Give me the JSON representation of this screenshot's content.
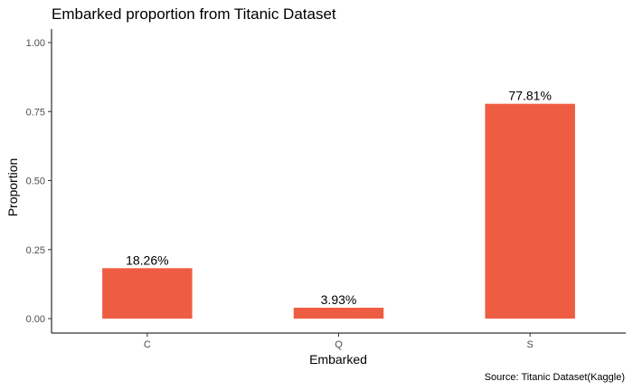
{
  "chart_data": {
    "type": "bar",
    "title": "Embarked proportion from Titanic Dataset",
    "caption": "Source: Titanic Dataset(Kaggle)",
    "xlabel": "Embarked",
    "ylabel": "Proportion",
    "categories": [
      "C",
      "Q",
      "S"
    ],
    "values": [
      0.1826,
      0.0393,
      0.7781
    ],
    "data_labels": [
      "18.26%",
      "3.93%",
      "77.81%"
    ],
    "ylim": [
      0,
      1
    ],
    "y_ticks": [
      0,
      0.25,
      0.5,
      0.75,
      1.0
    ],
    "y_tick_labels": [
      "0.00",
      "0.25",
      "0.50",
      "0.75",
      "1.00"
    ],
    "bar_color": "#EE5D42",
    "grid": false,
    "legend": "none"
  }
}
